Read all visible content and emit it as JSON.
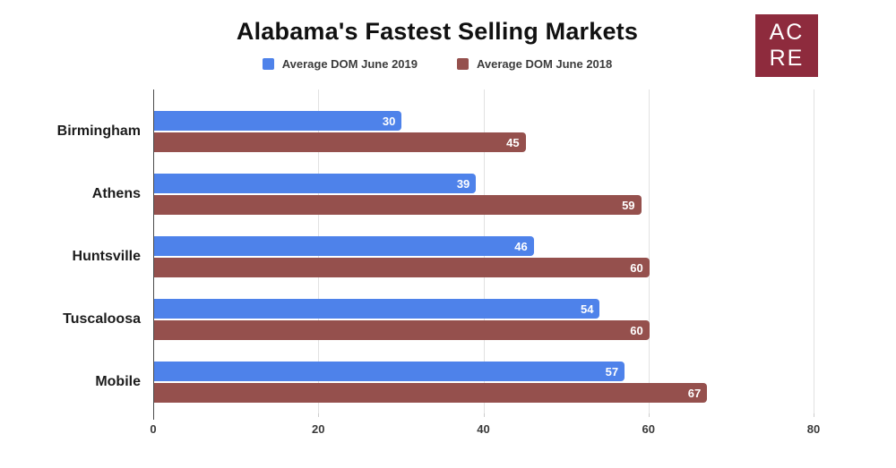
{
  "title": "Alabama's Fastest Selling Markets",
  "logo": {
    "line1": "AC",
    "line2": "RE",
    "bg_color": "#8e2b3d",
    "text_color": "#ffffff"
  },
  "colors": {
    "series_2019": "#4e82ea",
    "series_2018": "#95504d",
    "gridline": "#e2e2e2",
    "zero_line": "#4a4a4a"
  },
  "chart_data": {
    "type": "bar",
    "orientation": "horizontal",
    "title": "Alabama's Fastest Selling Markets",
    "categories": [
      "Birmingham",
      "Athens",
      "Huntsville",
      "Tuscaloosa",
      "Mobile"
    ],
    "series": [
      {
        "name": "Average DOM June 2019",
        "color": "#4e82ea",
        "values": [
          30,
          39,
          46,
          54,
          57
        ]
      },
      {
        "name": "Average DOM June 2018",
        "color": "#95504d",
        "values": [
          45,
          59,
          60,
          60,
          67
        ]
      }
    ],
    "xlabel": "",
    "ylabel": "",
    "x_ticks": [
      0,
      20,
      40,
      60,
      80
    ],
    "xlim": [
      0,
      80
    ],
    "grid": true,
    "legend_position": "top",
    "value_labels": "inside-end"
  }
}
